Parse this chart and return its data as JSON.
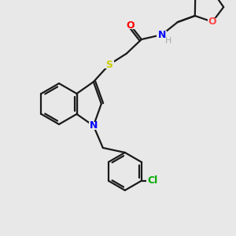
{
  "background_color": "#e8e8e8",
  "bond_color": "#1a1a1a",
  "atom_colors": {
    "N": "#0000ff",
    "O_carbonyl": "#ff0000",
    "O_ring": "#ff4444",
    "S": "#cccc00",
    "Cl": "#00aa00",
    "H": "#aaaaaa",
    "C": "#1a1a1a"
  },
  "figsize": [
    3.0,
    3.0
  ],
  "dpi": 100
}
